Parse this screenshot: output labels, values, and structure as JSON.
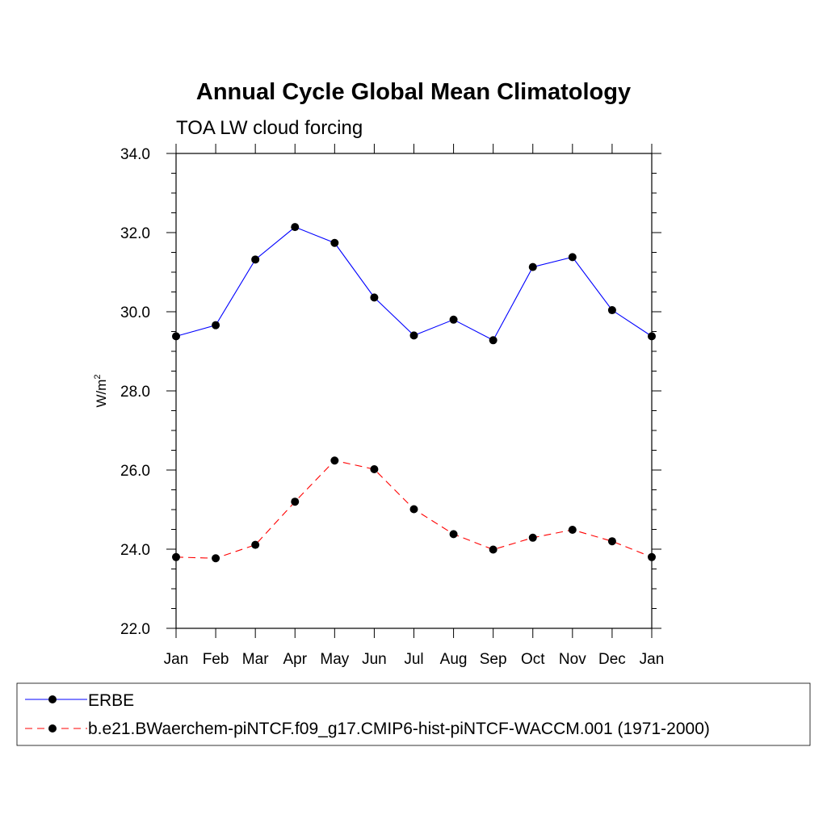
{
  "chart_data": {
    "type": "line",
    "title": "Annual Cycle Global Mean Climatology",
    "subtitle": "TOA LW cloud forcing",
    "ylabel": "W/m",
    "ylabel_sup": "2",
    "xlabel": "",
    "categories": [
      "Jan",
      "Feb",
      "Mar",
      "Apr",
      "May",
      "Jun",
      "Jul",
      "Aug",
      "Sep",
      "Oct",
      "Nov",
      "Dec",
      "Jan"
    ],
    "ylim": [
      22.0,
      34.0
    ],
    "y_ticks": [
      "22.0",
      "24.0",
      "26.0",
      "28.0",
      "30.0",
      "32.0",
      "34.0"
    ],
    "grid": false,
    "legend_position": "bottom",
    "series": [
      {
        "name": "ERBE",
        "color": "#0000ff",
        "dash": "solid",
        "values": [
          29.38,
          29.66,
          31.32,
          32.14,
          31.74,
          30.36,
          29.4,
          29.8,
          29.28,
          31.13,
          31.38,
          30.04,
          29.38
        ]
      },
      {
        "name": "b.e21.BWaerchem-piNTCF.f09_g17.CMIP6-hist-piNTCF-WACCM.001 (1971-2000)",
        "color": "#ff0000",
        "dash": "dashed",
        "values": [
          23.8,
          23.77,
          24.11,
          25.2,
          26.24,
          26.02,
          25.01,
          24.38,
          23.99,
          24.29,
          24.49,
          24.2,
          23.8
        ]
      }
    ]
  }
}
